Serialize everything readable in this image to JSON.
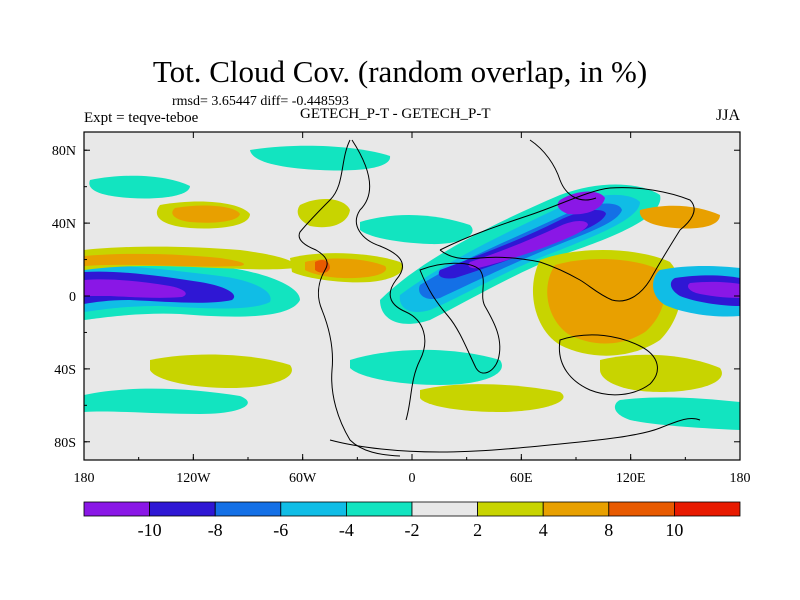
{
  "chart_data": {
    "type": "heatmap",
    "title": "Tot. Cloud Cov. (random overlap, in %)",
    "stats_text": "rmsd= 3.65447 diff= -0.448593",
    "expt_label": "Expt = teqve-teboe",
    "subtitle": "GETECH_P-T - GETECH_P-T",
    "season": "JJA",
    "x_ticks": [
      "180",
      "120W",
      "60W",
      "0",
      "60E",
      "120E",
      "180"
    ],
    "x_tick_values": [
      -180,
      -120,
      -60,
      0,
      60,
      120,
      180
    ],
    "y_ticks": [
      "80N",
      "40N",
      "0",
      "40S",
      "80S"
    ],
    "y_tick_values": [
      80,
      40,
      0,
      -40,
      -80
    ],
    "xlim": [
      -180,
      180
    ],
    "ylim": [
      -90,
      90
    ],
    "colorbar": {
      "levels": [
        "-10",
        "-8",
        "-6",
        "-4",
        "-2",
        "2",
        "4",
        "8",
        "10"
      ],
      "colors": [
        "#8a17e6",
        "#2f17d4",
        "#1470e6",
        "#10bde6",
        "#12e4c0",
        "#e8e8e8",
        "#c8d400",
        "#e8a000",
        "#e85a00",
        "#e81a00"
      ]
    },
    "anomaly_regions": [
      {
        "lon": -160,
        "lat": 0,
        "value": -10
      },
      {
        "lon": -140,
        "lat": 18,
        "value": 4
      },
      {
        "lon": -120,
        "lat": 42,
        "value": 4
      },
      {
        "lon": -50,
        "lat": 15,
        "value": 8
      },
      {
        "lon": 20,
        "lat": 12,
        "value": -10
      },
      {
        "lon": 90,
        "lat": 40,
        "value": -10
      },
      {
        "lon": 100,
        "lat": 10,
        "value": 8
      },
      {
        "lon": 165,
        "lat": 0,
        "value": -10
      },
      {
        "lon": 120,
        "lat": -30,
        "value": 4
      },
      {
        "lon": -160,
        "lat": -30,
        "value": 4
      }
    ]
  },
  "colors": {
    "ocean_neutral": "#e8e8e8",
    "coastline": "#000000"
  }
}
